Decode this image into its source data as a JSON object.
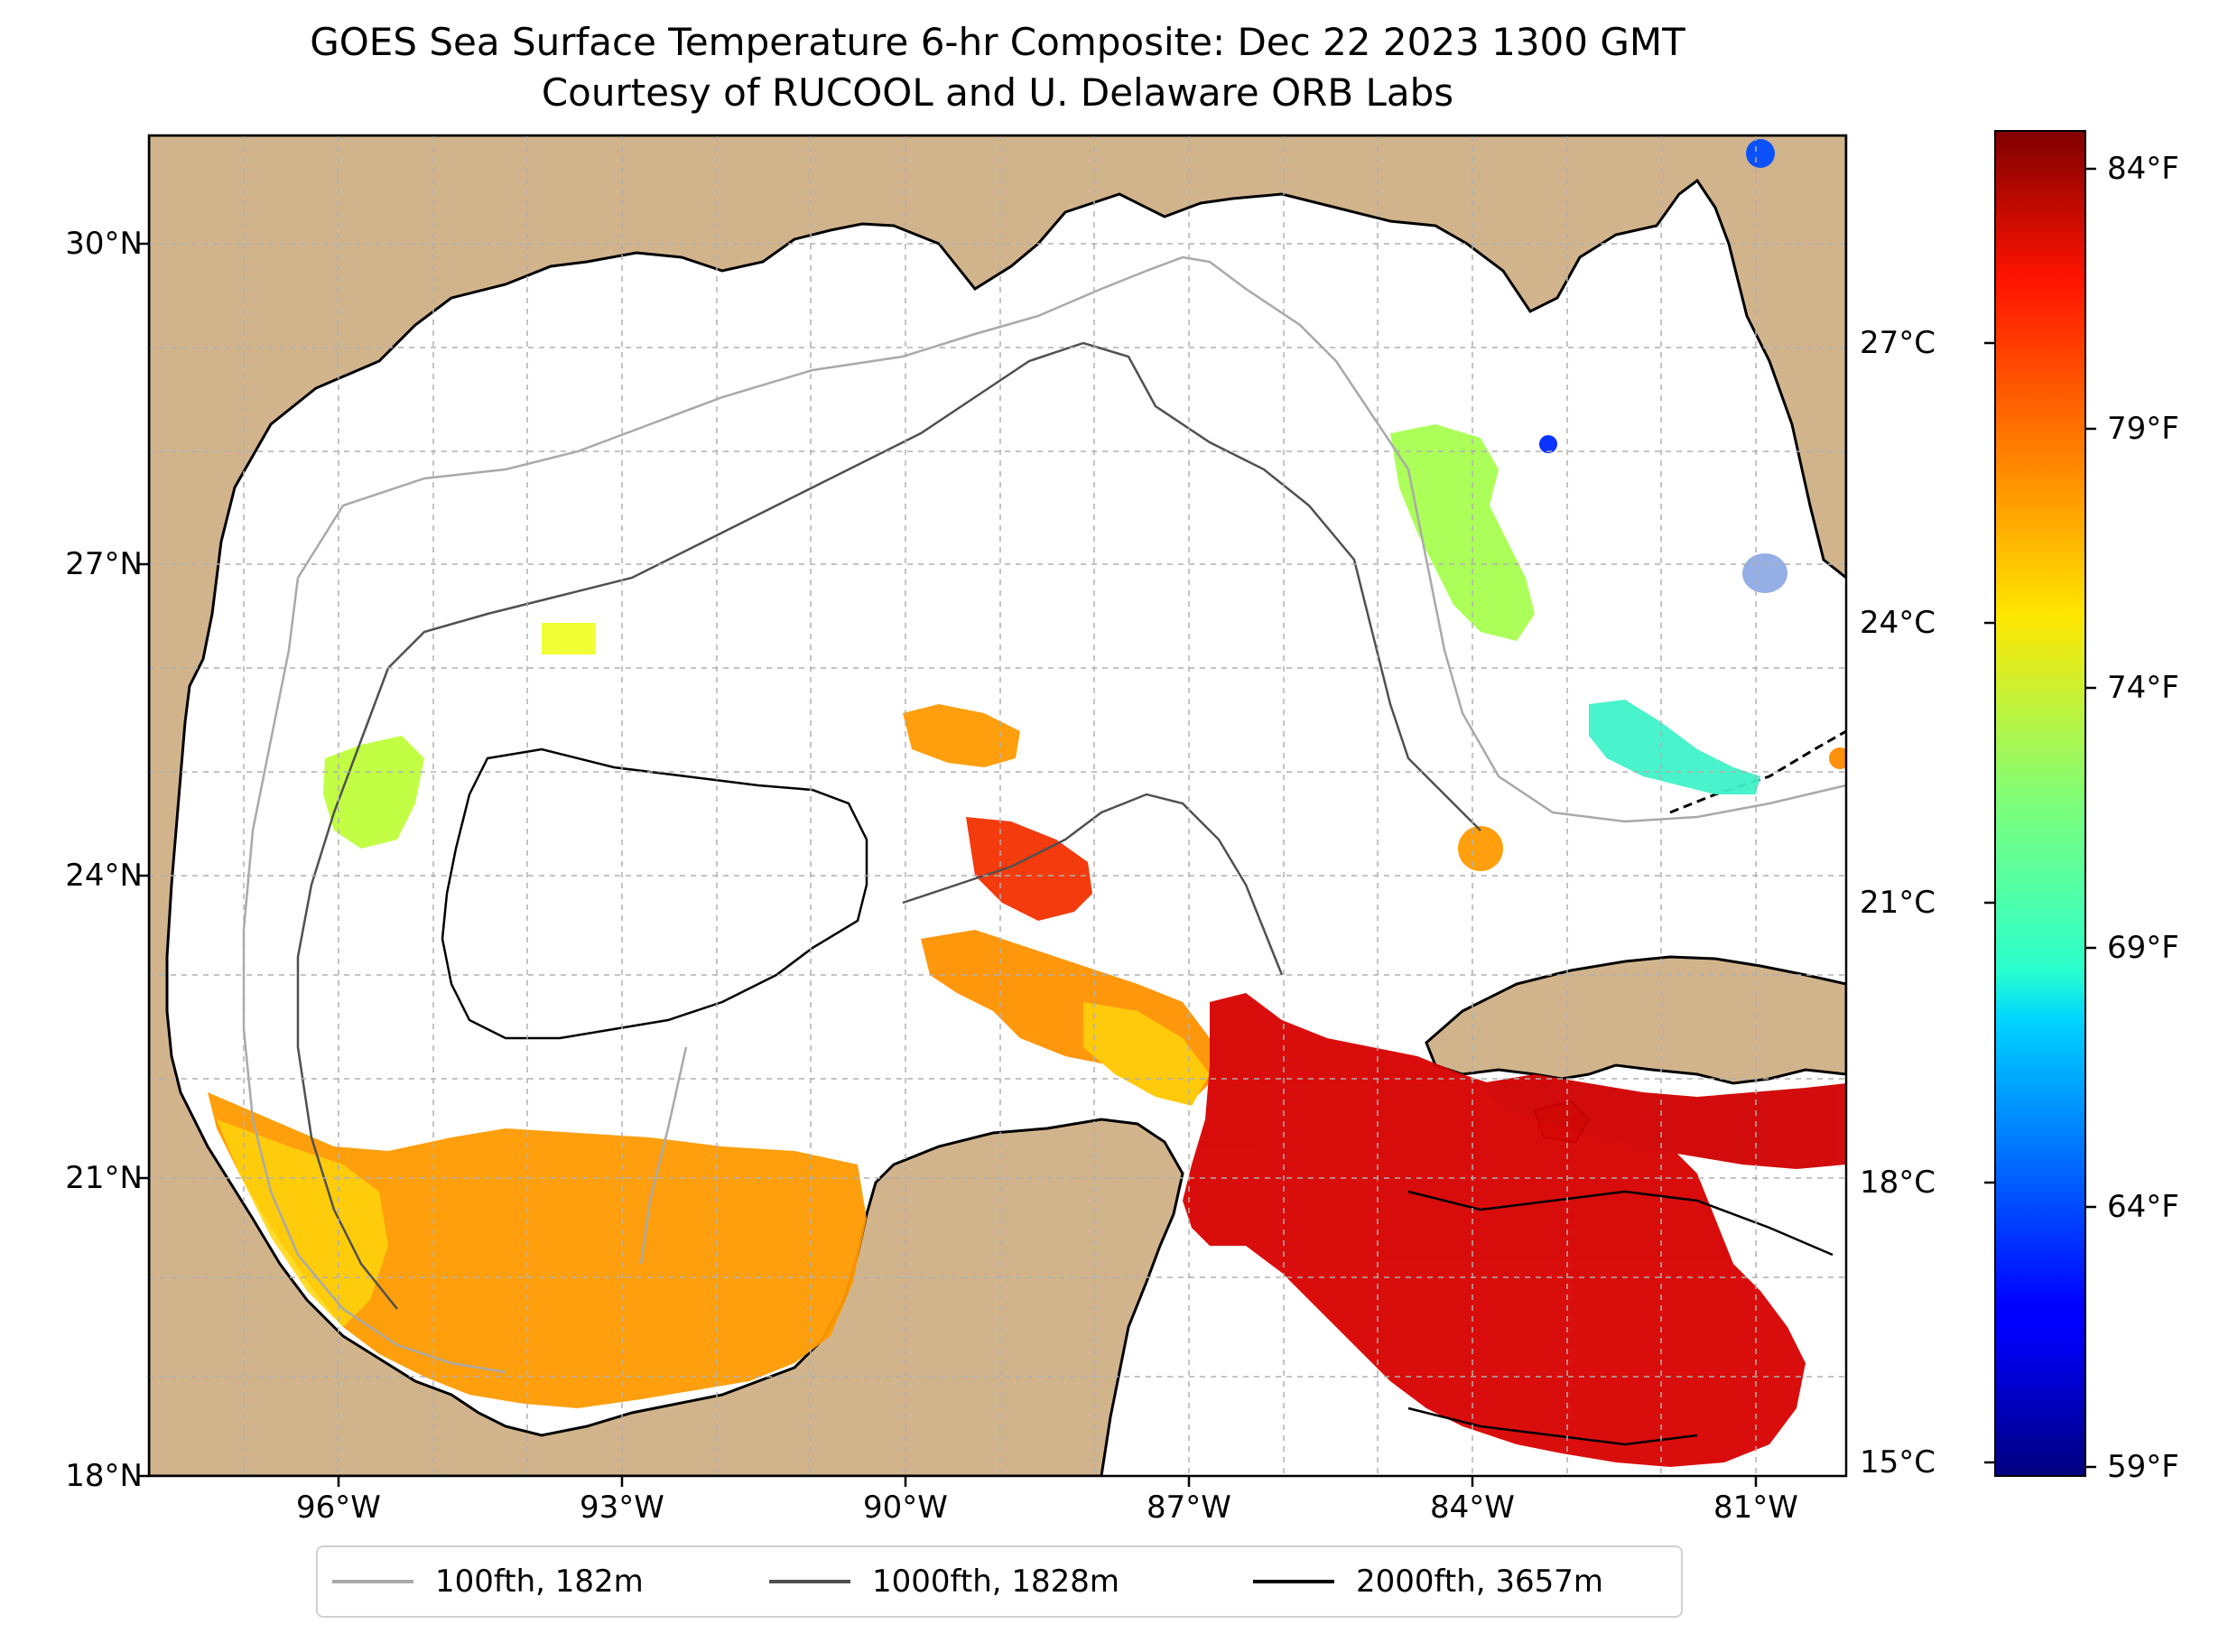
{
  "title_line1": "GOES Sea Surface Temperature 6-hr Composite: Dec 22 2023 1300 GMT",
  "title_line2": "Courtesy of RUCOOL and U. Delaware ORB Labs",
  "map": {
    "projection": "PlateCarree",
    "lon_range": [
      -98,
      -80
    ],
    "lat_range": [
      18,
      31
    ],
    "gridlines": true,
    "land_color": "#D2B48C",
    "lon_ticks": [
      {
        "value": -96,
        "label": "96°W"
      },
      {
        "value": -93,
        "label": "93°W"
      },
      {
        "value": -90,
        "label": "90°W"
      },
      {
        "value": -87,
        "label": "87°W"
      },
      {
        "value": -84,
        "label": "84°W"
      },
      {
        "value": -81,
        "label": "81°W"
      }
    ],
    "lat_ticks": [
      {
        "value": 18,
        "label": "18°N"
      },
      {
        "value": 21,
        "label": "21°N"
      },
      {
        "value": 24,
        "label": "24°N"
      },
      {
        "value": 27,
        "label": "27°N"
      },
      {
        "value": 30,
        "label": "30°N"
      }
    ]
  },
  "colorbar": {
    "colormap": "jet",
    "range_c": [
      15,
      29.4
    ],
    "celsius_ticks": [
      {
        "value": 15,
        "label": "15°C"
      },
      {
        "value": 18,
        "label": "18°C"
      },
      {
        "value": 21,
        "label": "21°C"
      },
      {
        "value": 24,
        "label": "24°C"
      },
      {
        "value": 27,
        "label": "27°C"
      }
    ],
    "fahrenheit_ticks": [
      {
        "value": 59,
        "label": "59°F"
      },
      {
        "value": 64,
        "label": "64°F"
      },
      {
        "value": 69,
        "label": "69°F"
      },
      {
        "value": 74,
        "label": "74°F"
      },
      {
        "value": 79,
        "label": "79°F"
      },
      {
        "value": 84,
        "label": "84°F"
      }
    ]
  },
  "legend": [
    {
      "label": "100fth, 182m",
      "color": "#a9a9a9"
    },
    {
      "label": "1000fth, 1828m",
      "color": "#505050"
    },
    {
      "label": "2000fth, 3657m",
      "color": "#000000"
    }
  ]
}
